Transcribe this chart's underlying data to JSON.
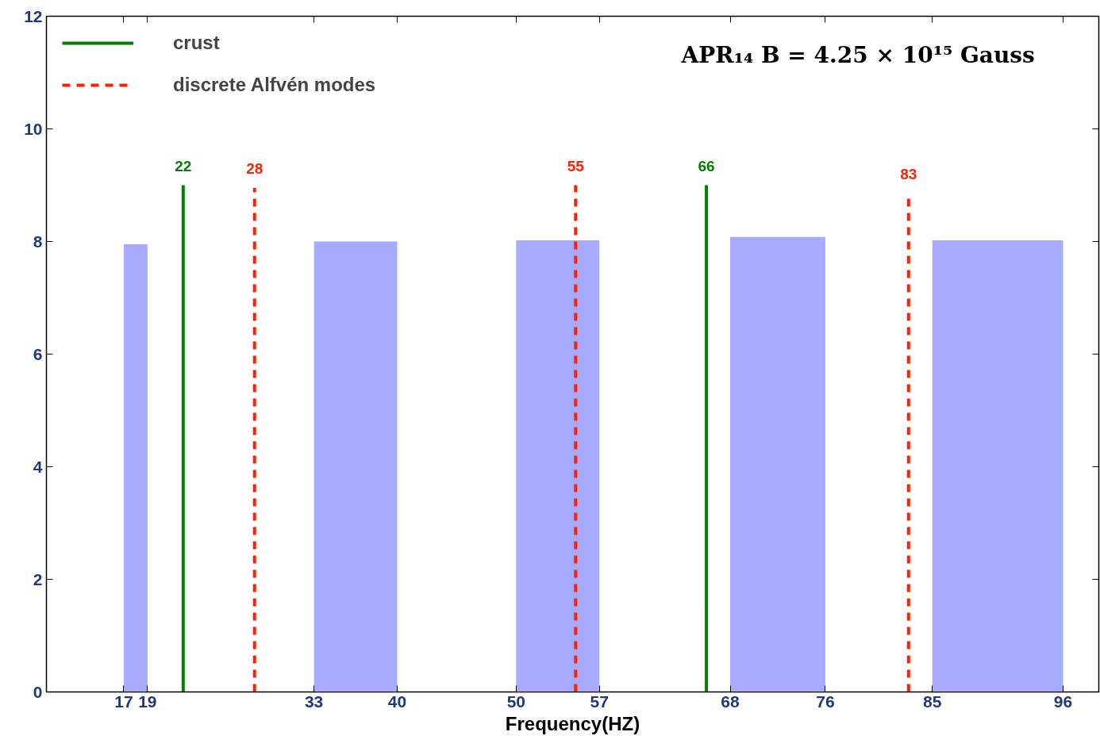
{
  "chart_data": {
    "type": "histogram",
    "title": "APR₁₄   B = 4.25 × 10¹⁵ Gauss",
    "xlabel": "Frequency(HZ)",
    "bins": [
      17,
      19,
      33,
      40,
      50,
      57,
      68,
      76,
      85,
      96
    ],
    "values": [
      7.95,
      0,
      8.0,
      0,
      8.02,
      0,
      8.08,
      0,
      8.02
    ],
    "color": "#a8aaff",
    "series": [
      {
        "name": "crust",
        "type": "line",
        "color": "#008000",
        "line_style": "solid",
        "x": [
          22,
          22,
          null,
          66,
          66
        ],
        "values": [
          0,
          9,
          null,
          0,
          9
        ]
      },
      {
        "name": "discrete Alfvén modes",
        "type": "line",
        "color": "#ff2200",
        "line_style": "dashed",
        "x": [
          28,
          28,
          null,
          55,
          55,
          null,
          83,
          83
        ],
        "values": [
          0,
          8.95,
          null,
          0,
          9,
          null,
          0,
          8.85
        ]
      }
    ],
    "annotations": [
      {
        "text": "22",
        "x": 22,
        "y": 9
      },
      {
        "text": "28",
        "x": 28,
        "y": 8.95
      },
      {
        "text": "55",
        "x": 55,
        "y": 9
      },
      {
        "text": "66",
        "x": 66,
        "y": 9
      },
      {
        "text": "83",
        "x": 83,
        "y": 8.85
      }
    ],
    "xlim": [
      10.5,
      99
    ],
    "ylim": [
      0,
      12
    ],
    "xticks": [
      17,
      19,
      33,
      40,
      50,
      57,
      68,
      76,
      85,
      96
    ],
    "yticks": [
      0,
      2,
      4,
      6,
      8,
      10,
      12
    ],
    "grid": false,
    "legend": "top left"
  }
}
